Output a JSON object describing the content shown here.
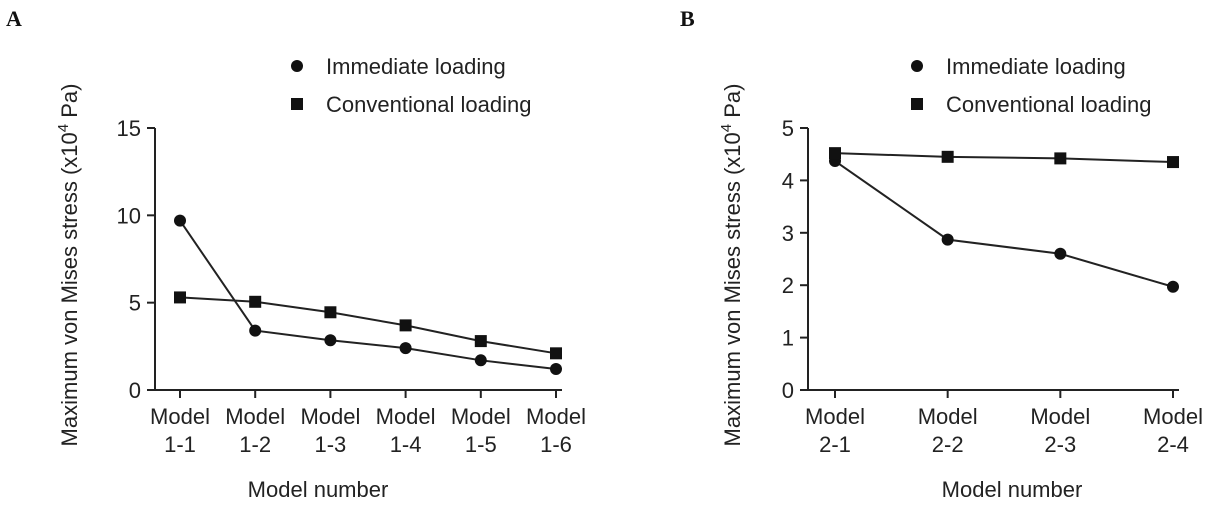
{
  "chart_data": [
    {
      "panel": "A",
      "type": "line",
      "xlabel": "Model number",
      "ylabel_main": "Maximum von Mises stress (x10",
      "ylabel_sup": "4",
      "ylabel_tail": " Pa)",
      "categories": [
        [
          "Model",
          "1-1"
        ],
        [
          "Model",
          "1-2"
        ],
        [
          "Model",
          "1-3"
        ],
        [
          "Model",
          "1-4"
        ],
        [
          "Model",
          "1-5"
        ],
        [
          "Model",
          "1-6"
        ]
      ],
      "ylim": [
        0,
        15
      ],
      "yticks": [
        0,
        5,
        10,
        15
      ],
      "series": [
        {
          "name": "Immediate loading",
          "marker": "circle",
          "values": [
            9.7,
            3.4,
            2.85,
            2.4,
            1.7,
            1.2
          ]
        },
        {
          "name": "Conventional loading",
          "marker": "square",
          "values": [
            5.3,
            5.05,
            4.45,
            3.7,
            2.8,
            2.1
          ]
        }
      ],
      "legend": "top"
    },
    {
      "panel": "B",
      "type": "line",
      "xlabel": "Model number",
      "ylabel_main": "Maximum von Mises stress (x10",
      "ylabel_sup": "4",
      "ylabel_tail": " Pa)",
      "categories": [
        [
          "Model",
          "2-1"
        ],
        [
          "Model",
          "2-2"
        ],
        [
          "Model",
          "2-3"
        ],
        [
          "Model",
          "2-4"
        ]
      ],
      "ylim": [
        0,
        5
      ],
      "yticks": [
        0,
        1,
        2,
        3,
        4,
        5
      ],
      "series": [
        {
          "name": "Immediate loading",
          "marker": "circle",
          "values": [
            4.37,
            2.87,
            2.6,
            1.97
          ]
        },
        {
          "name": "Conventional loading",
          "marker": "square",
          "values": [
            4.52,
            4.45,
            4.42,
            4.35
          ]
        }
      ],
      "legend": "top"
    }
  ]
}
